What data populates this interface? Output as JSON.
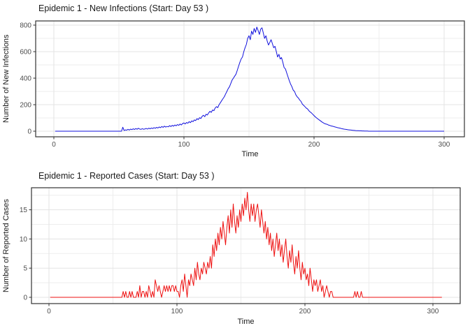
{
  "page": {
    "background": "#FFFFFF"
  },
  "style": {
    "grid_major": "#E3E3E3",
    "grid_minor": "#EDEDED",
    "panel_border": "#333333",
    "tick_mark": "#333333",
    "tick_label_color": "#4D4D4D",
    "text_color": "#1A1A1A"
  },
  "chart_data": [
    {
      "type": "line",
      "title": "Epidemic 1 - New Infections (Start: Day 53 )",
      "xlabel": "Time",
      "ylabel": "Number of New Infections",
      "line_color": "#1111DD",
      "legend": "none",
      "grid": "on",
      "xlim": [
        -14,
        316
      ],
      "ylim": [
        -42,
        832
      ],
      "x_ticks": [
        0,
        100,
        200,
        300
      ],
      "x_minor_ticks": [
        50,
        150,
        250
      ],
      "y_ticks": [
        0,
        200,
        400,
        600,
        800
      ],
      "y_minor_ticks": [
        100,
        300,
        500,
        700
      ],
      "x_start": 1,
      "x_step": 1,
      "y": [
        0,
        0,
        0,
        0,
        0,
        0,
        0,
        0,
        0,
        0,
        0,
        0,
        0,
        0,
        0,
        0,
        0,
        0,
        0,
        0,
        0,
        0,
        0,
        0,
        0,
        0,
        0,
        0,
        0,
        0,
        0,
        0,
        0,
        0,
        0,
        0,
        0,
        0,
        0,
        0,
        0,
        0,
        0,
        0,
        0,
        0,
        0,
        0,
        0,
        0,
        0,
        0,
        30,
        6,
        10,
        8,
        14,
        9,
        16,
        12,
        18,
        13,
        20,
        15,
        22,
        16,
        14,
        19,
        15,
        17,
        21,
        16,
        23,
        18,
        24,
        20,
        27,
        22,
        29,
        24,
        32,
        27,
        35,
        29,
        38,
        31,
        36,
        33,
        42,
        35,
        44,
        38,
        47,
        41,
        50,
        44,
        54,
        47,
        58,
        62,
        55,
        66,
        60,
        72,
        65,
        78,
        72,
        85,
        80,
        94,
        88,
        102,
        96,
        112,
        120,
        110,
        128,
        122,
        138,
        150,
        142,
        160,
        155,
        175,
        185,
        178,
        200,
        215,
        230,
        245,
        260,
        280,
        300,
        320,
        335,
        360,
        385,
        400,
        415,
        430,
        460,
        490,
        520,
        545,
        560,
        600,
        630,
        655,
        700,
        720,
        690,
        755,
        730,
        775,
        745,
        785,
        760,
        730,
        770,
        780,
        740,
        700,
        720,
        680,
        650,
        670,
        690,
        660,
        630,
        640,
        600,
        560,
        580,
        545,
        555,
        520,
        480,
        470,
        440,
        410,
        380,
        355,
        335,
        310,
        300,
        275,
        260,
        250,
        235,
        225,
        205,
        195,
        185,
        175,
        168,
        155,
        145,
        138,
        128,
        118,
        108,
        100,
        92,
        85,
        78,
        70,
        64,
        58,
        55,
        52,
        47,
        44,
        40,
        38,
        36,
        32,
        30,
        27,
        25,
        23,
        20,
        18,
        16,
        14,
        13,
        11,
        10,
        9,
        8,
        7,
        6,
        5,
        4,
        4,
        3,
        3,
        2,
        2,
        1,
        1,
        1,
        0,
        0,
        0,
        0,
        0,
        0,
        0,
        0,
        0,
        0,
        0,
        0,
        0,
        0,
        0,
        0,
        0,
        0,
        0,
        0,
        0,
        0,
        0,
        0,
        0,
        0,
        0,
        0,
        0,
        0,
        0,
        0,
        0,
        0,
        0,
        0,
        0,
        0,
        0,
        0,
        0,
        0,
        0,
        0,
        0,
        0,
        0,
        0,
        0,
        0,
        0,
        0,
        0,
        0,
        0,
        0,
        0,
        0,
        0
      ]
    },
    {
      "type": "line",
      "title": "Epidemic 1 - Reported Cases (Start: Day 53 )",
      "xlabel": "Time",
      "ylabel": "Number of Reported Cases",
      "line_color": "#EE1111",
      "legend": "none",
      "grid": "on",
      "xlim": [
        -14,
        321
      ],
      "ylim": [
        -0.95,
        19.0
      ],
      "x_ticks": [
        0,
        100,
        200,
        300
      ],
      "x_minor_ticks": [
        50,
        150,
        250
      ],
      "y_ticks": [
        0,
        5,
        10,
        15
      ],
      "y_minor_ticks": [
        2.5,
        7.5,
        12.5,
        17.5
      ],
      "x_start": 1,
      "x_step": 1,
      "y": [
        0,
        0,
        0,
        0,
        0,
        0,
        0,
        0,
        0,
        0,
        0,
        0,
        0,
        0,
        0,
        0,
        0,
        0,
        0,
        0,
        0,
        0,
        0,
        0,
        0,
        0,
        0,
        0,
        0,
        0,
        0,
        0,
        0,
        0,
        0,
        0,
        0,
        0,
        0,
        0,
        0,
        0,
        0,
        0,
        0,
        0,
        0,
        0,
        0,
        0,
        0,
        0,
        0,
        0,
        0,
        0,
        0,
        1,
        0,
        1,
        0,
        0,
        1,
        0,
        1,
        0,
        0,
        0,
        1,
        0,
        2,
        0,
        1,
        1,
        0,
        1,
        0,
        2,
        1,
        0,
        1,
        0,
        3,
        2,
        1,
        2,
        1,
        0,
        1,
        2,
        1,
        2,
        1,
        2,
        1,
        2,
        2,
        1,
        2,
        1,
        1,
        0,
        2,
        3,
        1,
        4,
        2,
        0,
        3,
        2,
        4,
        3,
        2,
        5,
        3,
        6,
        4,
        3,
        5,
        4,
        6,
        5,
        4,
        6,
        5,
        7,
        5,
        9,
        7,
        10,
        8,
        11,
        9,
        12,
        10,
        13,
        11,
        9,
        12,
        14,
        11,
        15,
        12,
        16,
        13,
        11,
        14,
        12,
        15,
        13,
        16,
        14,
        17,
        15,
        18,
        15,
        13,
        16,
        14,
        16,
        13,
        15,
        16,
        14,
        12,
        15,
        13,
        11,
        13,
        10,
        12,
        9,
        11,
        8,
        10,
        7,
        9,
        11,
        8,
        10,
        7,
        9,
        6,
        8,
        10,
        7,
        5,
        8,
        6,
        9,
        6,
        4,
        7,
        5,
        8,
        5,
        3,
        6,
        4,
        5,
        3,
        4,
        2,
        5,
        3,
        1,
        3,
        2,
        3,
        1,
        2,
        3,
        1,
        2,
        0,
        1,
        2,
        1,
        0,
        1,
        1,
        0,
        0,
        0,
        0,
        0,
        0,
        0,
        0,
        0,
        0,
        0,
        0,
        0,
        0,
        0,
        0,
        0,
        1,
        0,
        1,
        0,
        0,
        1,
        0,
        0,
        0,
        0,
        0,
        0,
        0,
        0,
        0,
        0,
        0,
        0,
        0,
        0,
        0,
        0,
        0,
        0,
        0,
        0,
        0,
        0,
        0,
        0,
        0,
        0,
        0,
        0,
        0,
        0,
        0,
        0,
        0,
        0,
        0,
        0,
        0,
        0,
        0,
        0,
        0,
        0,
        0,
        0,
        0,
        0,
        0,
        0,
        0,
        0,
        0,
        0,
        0,
        0,
        0,
        0,
        0,
        0,
        0,
        0,
        0,
        0,
        0
      ]
    }
  ]
}
